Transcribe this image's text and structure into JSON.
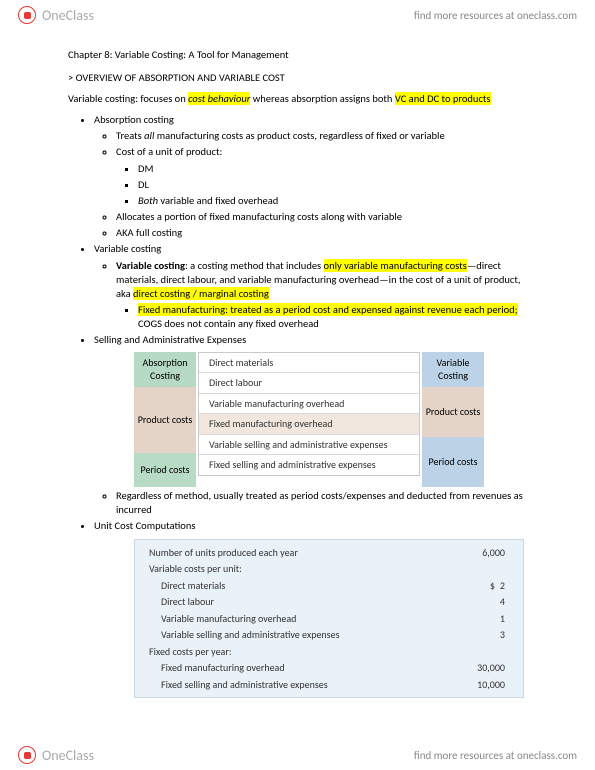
{
  "brand": "OneClass",
  "header_link": "find more resources at oneclass.com",
  "title": "Chapter 8: Variable Costing: A Tool for Management",
  "section1": "> OVERVIEW OF ABSORPTION AND VARIABLE COST",
  "intro_pre": "Variable costing: focuses on ",
  "intro_hl1": "cost behaviour",
  "intro_mid": " whereas absorption assigns both ",
  "intro_hl2": "VC and DC to products",
  "absorption": {
    "head": "Absorption costing",
    "b1": "Treats all manufacturing costs as product costs, regardless of fixed or variable",
    "b1_ital": "all",
    "b2": "Cost of a unit of product:",
    "b2a": "DM",
    "b2b": "DL",
    "b2c_pre": "Both",
    "b2c_post": " variable and fixed overhead",
    "b3": "Allocates a portion of fixed manufacturing costs along with variable",
    "b4": "AKA full costing"
  },
  "variable": {
    "head": "Variable costing",
    "b1_bold": "Variable costing",
    "b1_mid1": ": a costing method that includes ",
    "b1_hl1": "only variable manufacturing costs",
    "b1_mid2": "—direct materials, direct labour, and variable manufacturing overhead—in the cost of a unit of product, aka ",
    "b1_hl2": "direct costing / marginal costing",
    "b2_hl": "Fixed manufacturing: treated as a period cost and expensed against revenue each period;",
    "b2_post": " COGS does not contain any fixed overhead"
  },
  "sae_head": "Selling and Administrative Expenses",
  "diagram": {
    "ab_head": "Absorption Costing",
    "vc_head": "Variable Costing",
    "product_label": "Product costs",
    "period_label": "Period costs",
    "rows": [
      "Direct materials",
      "Direct labour",
      "Variable manufacturing overhead",
      "Fixed manufacturing overhead",
      "Variable selling and administrative expenses",
      "Fixed selling and administrative expenses"
    ]
  },
  "sae_note": "Regardless of method, usually treated as period costs/expenses and deducted from revenues as incurred",
  "ucc_head": "Unit Cost Computations",
  "cost_table": {
    "rows": [
      {
        "label": "Number of units produced each year",
        "val": "6,000",
        "indent": 0,
        "dollar": false
      },
      {
        "label": "Variable costs per unit:",
        "val": "",
        "indent": 0,
        "dollar": false
      },
      {
        "label": "Direct materials",
        "val": "2",
        "indent": 1,
        "dollar": true
      },
      {
        "label": "Direct labour",
        "val": "4",
        "indent": 1,
        "dollar": false
      },
      {
        "label": "Variable manufacturing overhead",
        "val": "1",
        "indent": 1,
        "dollar": false
      },
      {
        "label": "Variable selling and administrative expenses",
        "val": "3",
        "indent": 1,
        "dollar": false
      },
      {
        "label": "Fixed costs per year:",
        "val": "",
        "indent": 0,
        "dollar": false
      },
      {
        "label": "Fixed manufacturing overhead",
        "val": "30,000",
        "indent": 1,
        "dollar": false
      },
      {
        "label": "Fixed selling and administrative expenses",
        "val": "10,000",
        "indent": 1,
        "dollar": false
      }
    ]
  }
}
